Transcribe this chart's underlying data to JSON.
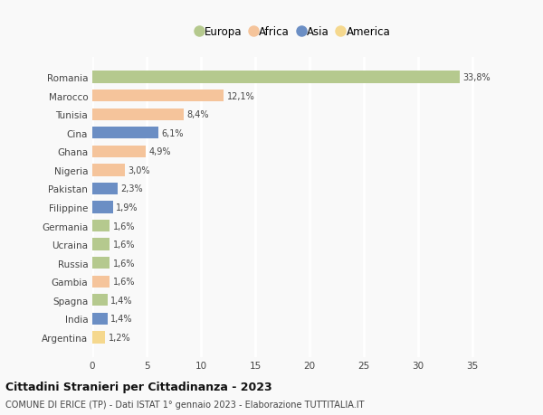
{
  "countries": [
    "Romania",
    "Marocco",
    "Tunisia",
    "Cina",
    "Ghana",
    "Nigeria",
    "Pakistan",
    "Filippine",
    "Germania",
    "Ucraina",
    "Russia",
    "Gambia",
    "Spagna",
    "India",
    "Argentina"
  ],
  "values": [
    33.8,
    12.1,
    8.4,
    6.1,
    4.9,
    3.0,
    2.3,
    1.9,
    1.6,
    1.6,
    1.6,
    1.6,
    1.4,
    1.4,
    1.2
  ],
  "labels": [
    "33,8%",
    "12,1%",
    "8,4%",
    "6,1%",
    "4,9%",
    "3,0%",
    "2,3%",
    "1,9%",
    "1,6%",
    "1,6%",
    "1,6%",
    "1,6%",
    "1,4%",
    "1,4%",
    "1,2%"
  ],
  "continents": [
    "Europa",
    "Africa",
    "Africa",
    "Asia",
    "Africa",
    "Africa",
    "Asia",
    "Asia",
    "Europa",
    "Europa",
    "Europa",
    "Africa",
    "Europa",
    "Asia",
    "America"
  ],
  "colors": {
    "Europa": "#b5c98e",
    "Africa": "#f5c49b",
    "Asia": "#6b8ec4",
    "America": "#f5d88e"
  },
  "legend_order": [
    "Europa",
    "Africa",
    "Asia",
    "America"
  ],
  "title": "Cittadini Stranieri per Cittadinanza - 2023",
  "subtitle": "COMUNE DI ERICE (TP) - Dati ISTAT 1° gennaio 2023 - Elaborazione TUTTITALIA.IT",
  "xlim": [
    0,
    37
  ],
  "xticks": [
    0,
    5,
    10,
    15,
    20,
    25,
    30,
    35
  ],
  "background_color": "#f9f9f9",
  "grid_color": "#ffffff",
  "bar_height": 0.65
}
